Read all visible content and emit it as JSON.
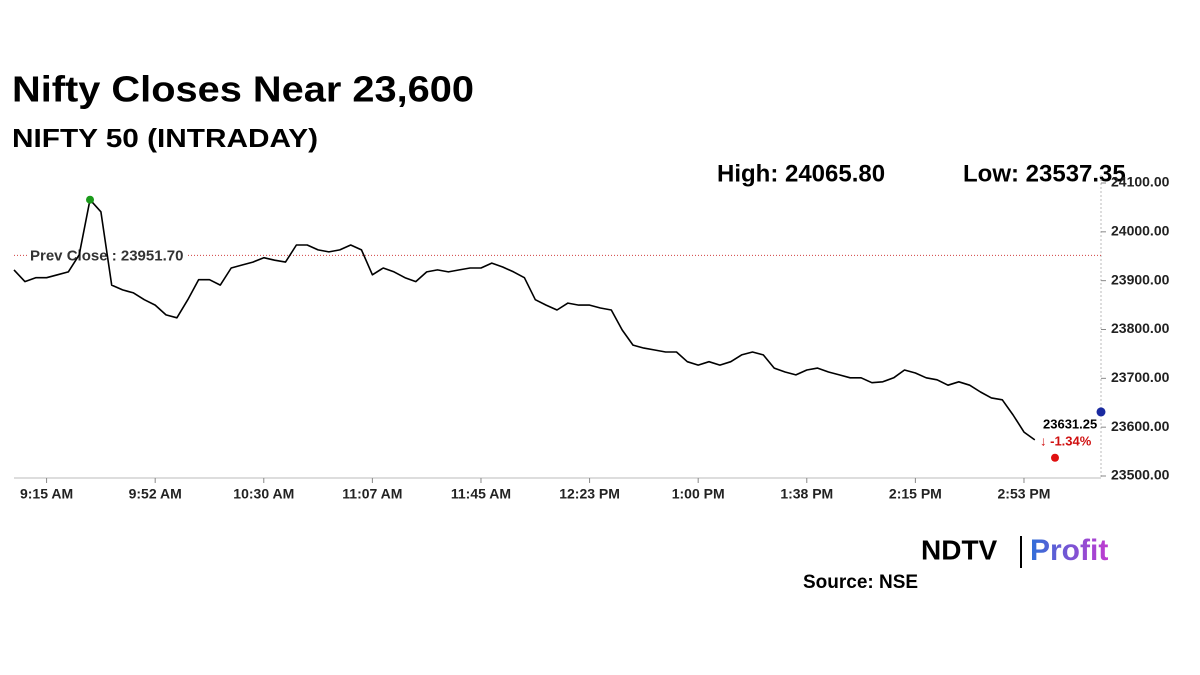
{
  "chart_data": {
    "type": "line",
    "title": "Nifty Closes Near 23,600",
    "subtitle": "NIFTY 50 (INTRADAY)",
    "high": {
      "label": "High: 24065.80",
      "value": 24065.8
    },
    "low": {
      "label": "Low: 23537.35",
      "value": 23537.35
    },
    "prev_close": {
      "label": "Prev Close : 23951.70",
      "value": 23951.7
    },
    "last": {
      "label": "23631.25",
      "value": 23631.25
    },
    "change": "↓ -1.34%",
    "categories": [
      null,
      null,
      null,
      "9:15 AM",
      null,
      null,
      null,
      null,
      null,
      null,
      null,
      null,
      null,
      "9:52 AM",
      null,
      null,
      null,
      null,
      null,
      null,
      null,
      null,
      null,
      "10:30 AM",
      null,
      null,
      null,
      null,
      null,
      null,
      null,
      null,
      null,
      "11:07 AM",
      null,
      null,
      null,
      null,
      null,
      null,
      null,
      null,
      null,
      "11:45 AM",
      null,
      null,
      null,
      null,
      null,
      null,
      null,
      null,
      null,
      "12:23 PM",
      null,
      null,
      null,
      null,
      null,
      null,
      null,
      null,
      null,
      "1:00 PM",
      null,
      null,
      null,
      null,
      null,
      null,
      null,
      null,
      null,
      "1:38 PM",
      null,
      null,
      null,
      null,
      null,
      null,
      null,
      null,
      null,
      "2:15 PM",
      null,
      null,
      null,
      null,
      null,
      null,
      null,
      null,
      null,
      "2:53 PM",
      null
    ],
    "series": [
      {
        "name": "NIFTY 50",
        "color": "#000000",
        "values": [
          23922,
          23898,
          23906,
          23906,
          23912,
          23918,
          23953,
          24065.8,
          24041,
          23891,
          23881,
          23875,
          23861,
          23850,
          23830,
          23824,
          23861,
          23902,
          23902,
          23891,
          23926,
          23932,
          23938,
          23947,
          23942,
          23938,
          23973,
          23973,
          23963,
          23959,
          23963,
          23973,
          23963,
          23912,
          23926,
          23918,
          23906,
          23898,
          23918,
          23922,
          23918,
          23922,
          23926,
          23926,
          23936,
          23928,
          23918,
          23906,
          23861,
          23850,
          23840,
          23854,
          23850,
          23850,
          23844,
          23840,
          23799,
          23768,
          23762,
          23758,
          23754,
          23754,
          23734,
          23727,
          23734,
          23727,
          23734,
          23748,
          23754,
          23748,
          23721,
          23713,
          23707,
          23717,
          23721,
          23713,
          23707,
          23701,
          23701,
          23691,
          23693,
          23701,
          23717,
          23711,
          23701,
          23697,
          23686,
          23693,
          23686,
          23672,
          23660,
          23656,
          23625,
          23590,
          23574
        ]
      }
    ],
    "ylim": [
      23500,
      24100
    ],
    "yticks": [
      {
        "value": 23500,
        "label": "23500.00"
      },
      {
        "value": 23600,
        "label": "23600.00"
      },
      {
        "value": 23700,
        "label": "23700.00"
      },
      {
        "value": 23800,
        "label": "23800.00"
      },
      {
        "value": 23900,
        "label": "23900.00"
      },
      {
        "value": 24000,
        "label": "24000.00"
      },
      {
        "value": 24100,
        "label": "24100.00"
      }
    ],
    "grid": false,
    "logo": {
      "brand": "NDTV",
      "product": "Profit"
    },
    "source": "Source: NSE"
  }
}
